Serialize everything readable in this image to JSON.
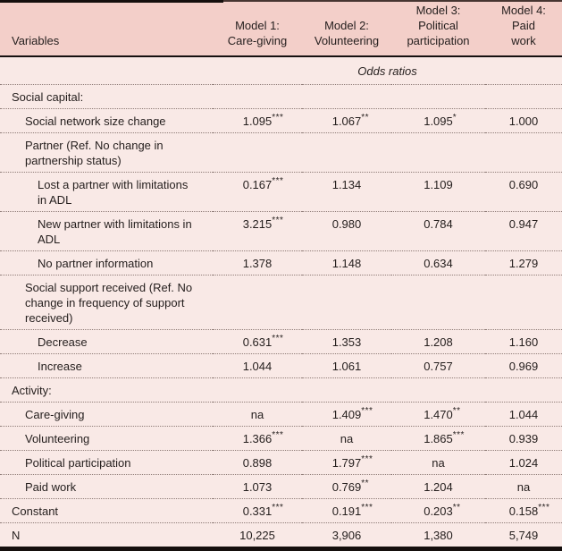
{
  "page": {
    "header_background": "#f3cfc9",
    "body_background": "#f9e9e6",
    "rule_color": "#150f0d",
    "dotted_color": "#8f7c77"
  },
  "table": {
    "header": {
      "variables_label": "Variables",
      "models": [
        "Model 1:\nCare-giving",
        "Model 2:\nVolunteering",
        "Model 3:\nPolitical\nparticipation",
        "Model 4:\nPaid\nwork"
      ]
    },
    "subheader": "Odds ratios",
    "rows": [
      {
        "label": "Social capital:",
        "indent": 0,
        "section": true,
        "values": [
          "",
          "",
          "",
          ""
        ]
      },
      {
        "label": "Social network size change",
        "indent": 1,
        "section": false,
        "values": [
          "1.095***",
          "1.067**",
          "1.095*",
          "1.000"
        ]
      },
      {
        "label": "Partner (Ref. No change in\npartnership status)",
        "indent": 1,
        "section": false,
        "values": [
          "",
          "",
          "",
          ""
        ]
      },
      {
        "label": "Lost a partner with limitations\nin ADL",
        "indent": 2,
        "section": false,
        "values": [
          "0.167***",
          "1.134",
          "1.109",
          "0.690"
        ]
      },
      {
        "label": "New partner with limitations in\nADL",
        "indent": 2,
        "section": false,
        "values": [
          "3.215***",
          "0.980",
          "0.784",
          "0.947"
        ]
      },
      {
        "label": "No partner information",
        "indent": 2,
        "section": false,
        "values": [
          "1.378",
          "1.148",
          "0.634",
          "1.279"
        ]
      },
      {
        "label": "Social support received (Ref. No\nchange in frequency of support\nreceived)",
        "indent": 1,
        "section": false,
        "values": [
          "",
          "",
          "",
          ""
        ]
      },
      {
        "label": "Decrease",
        "indent": 2,
        "section": false,
        "values": [
          "0.631***",
          "1.353",
          "1.208",
          "1.160"
        ]
      },
      {
        "label": "Increase",
        "indent": 2,
        "section": false,
        "values": [
          "1.044",
          "1.061",
          "0.757",
          "0.969"
        ]
      },
      {
        "label": "Activity:",
        "indent": 0,
        "section": true,
        "values": [
          "",
          "",
          "",
          ""
        ]
      },
      {
        "label": "Care-giving",
        "indent": 1,
        "section": false,
        "values": [
          "na",
          "1.409***",
          "1.470**",
          "1.044"
        ]
      },
      {
        "label": "Volunteering",
        "indent": 1,
        "section": false,
        "values": [
          "1.366***",
          "na",
          "1.865***",
          "0.939"
        ]
      },
      {
        "label": "Political participation",
        "indent": 1,
        "section": false,
        "values": [
          "0.898",
          "1.797***",
          "na",
          "1.024"
        ]
      },
      {
        "label": "Paid work",
        "indent": 1,
        "section": false,
        "values": [
          "1.073",
          "0.769**",
          "1.204",
          "na"
        ]
      },
      {
        "label": "Constant",
        "indent": 0,
        "section": false,
        "values": [
          "0.331***",
          "0.191***",
          "0.203**",
          "0.158***"
        ]
      },
      {
        "label": "N",
        "indent": 0,
        "section": false,
        "values": [
          "10,225",
          "3,906",
          "1,380",
          "5,749"
        ]
      }
    ]
  }
}
